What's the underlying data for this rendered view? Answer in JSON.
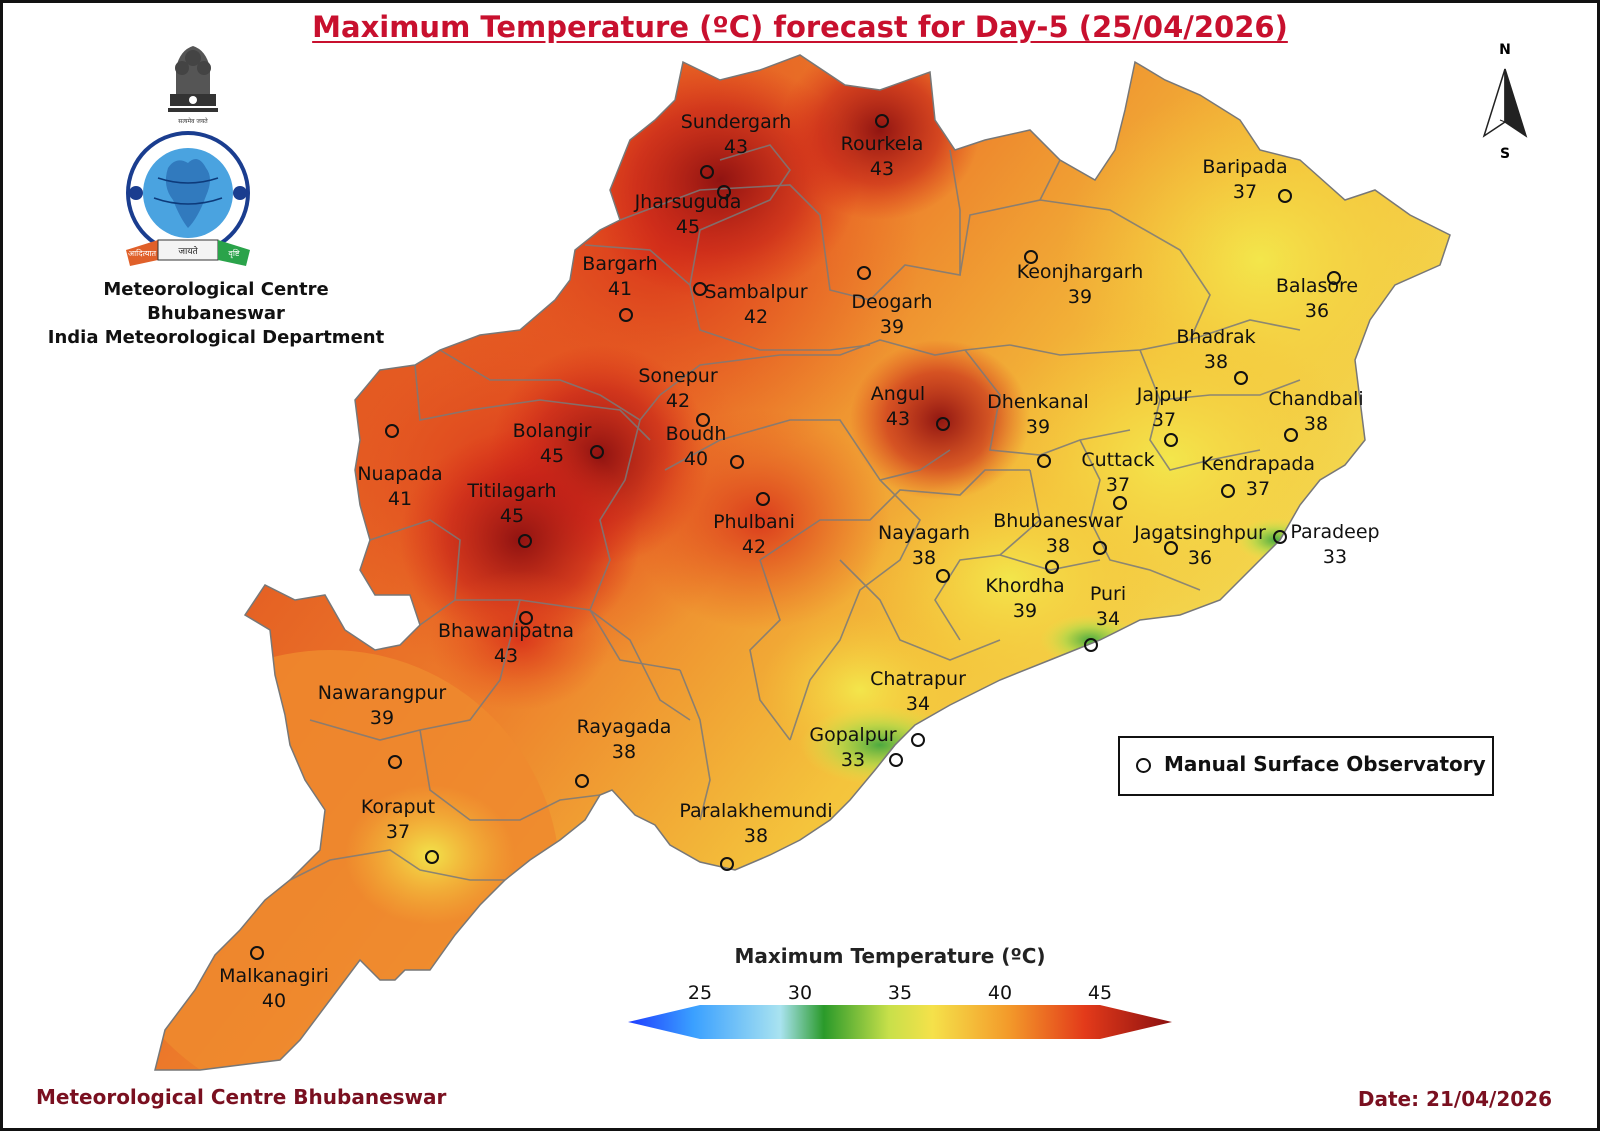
{
  "title": "Maximum Temperature (ºC) forecast for Day-5 (25/04/2026)",
  "organization": {
    "line1": "Meteorological Centre Bhubaneswar",
    "line2": "India Meteorological Department"
  },
  "logo": {
    "description_icon": "imd-emblem-icon",
    "ribbon_text_left": "आदित्यात",
    "ribbon_text_mid": "जायते",
    "ribbon_text_right": "वृष्टि",
    "ring_text": "भारत मौसम विज्ञान विभाग",
    "ring_text_bottom": "INDIA METEOROLOGICAL DEPARTMENT",
    "motto": "सत्यमेव जयते"
  },
  "north_arrow": {
    "top": "N",
    "bottom": "S"
  },
  "legend": {
    "station_label": "Manual Surface Observatory"
  },
  "colorbar": {
    "title": "Maximum Temperature (ºC)",
    "ticks": [
      "25",
      "30",
      "35",
      "40",
      "45"
    ],
    "min": 25,
    "max": 45,
    "colors": [
      "#1e3cff",
      "#3aa0ff",
      "#a9e3f0",
      "#2a9a2a",
      "#c8e04a",
      "#f5e14a",
      "#f39a2a",
      "#e33a1a",
      "#8b1010"
    ]
  },
  "footer": {
    "left": "Meteorological Centre Bhubaneswar",
    "right": "Date: 21/04/2026"
  },
  "stations": [
    {
      "name": "Sundergarh",
      "value": "43"
    },
    {
      "name": "Rourkela",
      "value": "43"
    },
    {
      "name": "Jharsuguda",
      "value": "45"
    },
    {
      "name": "Bargarh",
      "value": "41"
    },
    {
      "name": "Sambalpur",
      "value": "42"
    },
    {
      "name": "Deogarh",
      "value": "39"
    },
    {
      "name": "Keonjhargarh",
      "value": "39"
    },
    {
      "name": "Baripada",
      "value": "37"
    },
    {
      "name": "Balasore",
      "value": "36"
    },
    {
      "name": "Bhadrak",
      "value": "38"
    },
    {
      "name": "Chandbali",
      "value": "38"
    },
    {
      "name": "Jajpur",
      "value": "37"
    },
    {
      "name": "Dhenkanal",
      "value": "39"
    },
    {
      "name": "Angul",
      "value": "43"
    },
    {
      "name": "Sonepur",
      "value": "42"
    },
    {
      "name": "Bolangir",
      "value": "45"
    },
    {
      "name": "Boudh",
      "value": "40"
    },
    {
      "name": "Nuapada",
      "value": "41"
    },
    {
      "name": "Titilagarh",
      "value": "45"
    },
    {
      "name": "Phulbani",
      "value": "42"
    },
    {
      "name": "Cuttack",
      "value": "37"
    },
    {
      "name": "Kendrapada",
      "value": "37"
    },
    {
      "name": "Bhubaneswar",
      "value": "38"
    },
    {
      "name": "Jagatsinghpur",
      "value": "36"
    },
    {
      "name": "Paradeep",
      "value": "33"
    },
    {
      "name": "Nayagarh",
      "value": "38"
    },
    {
      "name": "Khordha",
      "value": "39"
    },
    {
      "name": "Puri",
      "value": "34"
    },
    {
      "name": "Bhawanipatna",
      "value": "43"
    },
    {
      "name": "Chatrapur",
      "value": "34"
    },
    {
      "name": "Gopalpur",
      "value": "33"
    },
    {
      "name": "Nawarangpur",
      "value": "39"
    },
    {
      "name": "Rayagada",
      "value": "38"
    },
    {
      "name": "Koraput",
      "value": "37"
    },
    {
      "name": "Paralakhemundi",
      "value": "38"
    },
    {
      "name": "Malkanagiri",
      "value": "40"
    }
  ]
}
